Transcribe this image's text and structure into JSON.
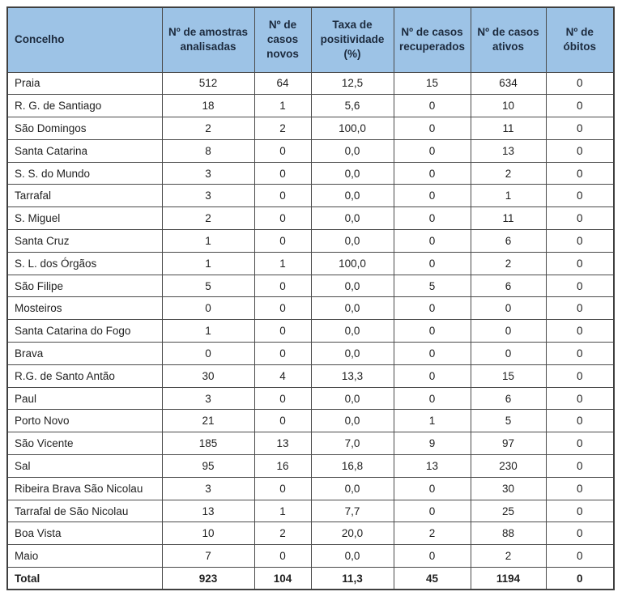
{
  "accent_colors": {
    "header_background": "#9dc3e6",
    "header_text": "#1c2a3d",
    "body_text": "#1f1f1f",
    "border": "#4a4a4a"
  },
  "table": {
    "columns": [
      "Concelho",
      "Nº de amostras analisadas",
      "Nº de casos novos",
      "Taxa de positividade (%)",
      "Nº de casos recuperados",
      "Nº de casos ativos",
      "Nº de óbitos"
    ],
    "rows": [
      {
        "concelho": "Praia",
        "values": [
          "512",
          "64",
          "12,5",
          "15",
          "634",
          "0"
        ]
      },
      {
        "concelho": "R. G. de Santiago",
        "values": [
          "18",
          "1",
          "5,6",
          "0",
          "10",
          "0"
        ]
      },
      {
        "concelho": "São Domingos",
        "values": [
          "2",
          "2",
          "100,0",
          "0",
          "11",
          "0"
        ]
      },
      {
        "concelho": "Santa Catarina",
        "values": [
          "8",
          "0",
          "0,0",
          "0",
          "13",
          "0"
        ]
      },
      {
        "concelho": "S. S. do Mundo",
        "values": [
          "3",
          "0",
          "0,0",
          "0",
          "2",
          "0"
        ]
      },
      {
        "concelho": "Tarrafal",
        "values": [
          "3",
          "0",
          "0,0",
          "0",
          "1",
          "0"
        ]
      },
      {
        "concelho": "S. Miguel",
        "values": [
          "2",
          "0",
          "0,0",
          "0",
          "11",
          "0"
        ]
      },
      {
        "concelho": "Santa Cruz",
        "values": [
          "1",
          "0",
          "0,0",
          "0",
          "6",
          "0"
        ]
      },
      {
        "concelho": "S. L. dos Órgãos",
        "values": [
          "1",
          "1",
          "100,0",
          "0",
          "2",
          "0"
        ]
      },
      {
        "concelho": "São Filipe",
        "values": [
          "5",
          "0",
          "0,0",
          "5",
          "6",
          "0"
        ]
      },
      {
        "concelho": "Mosteiros",
        "values": [
          "0",
          "0",
          "0,0",
          "0",
          "0",
          "0"
        ]
      },
      {
        "concelho": "Santa Catarina do Fogo",
        "values": [
          "1",
          "0",
          "0,0",
          "0",
          "0",
          "0"
        ]
      },
      {
        "concelho": "Brava",
        "values": [
          "0",
          "0",
          "0,0",
          "0",
          "0",
          "0"
        ]
      },
      {
        "concelho": "R.G. de Santo Antão",
        "values": [
          "30",
          "4",
          "13,3",
          "0",
          "15",
          "0"
        ]
      },
      {
        "concelho": "Paul",
        "values": [
          "3",
          "0",
          "0,0",
          "0",
          "6",
          "0"
        ]
      },
      {
        "concelho": "Porto Novo",
        "values": [
          "21",
          "0",
          "0,0",
          "1",
          "5",
          "0"
        ]
      },
      {
        "concelho": "São Vicente",
        "values": [
          "185",
          "13",
          "7,0",
          "9",
          "97",
          "0"
        ]
      },
      {
        "concelho": "Sal",
        "values": [
          "95",
          "16",
          "16,8",
          "13",
          "230",
          "0"
        ]
      },
      {
        "concelho": "Ribeira Brava São Nicolau",
        "values": [
          "3",
          "0",
          "0,0",
          "0",
          "30",
          "0"
        ]
      },
      {
        "concelho": "Tarrafal de São Nicolau",
        "values": [
          "13",
          "1",
          "7,7",
          "0",
          "25",
          "0"
        ]
      },
      {
        "concelho": "Boa Vista",
        "values": [
          "10",
          "2",
          "20,0",
          "2",
          "88",
          "0"
        ]
      },
      {
        "concelho": "Maio",
        "values": [
          "7",
          "0",
          "0,0",
          "0",
          "2",
          "0"
        ]
      }
    ],
    "total": {
      "concelho": "Total",
      "values": [
        "923",
        "104",
        "11,3",
        "45",
        "1194",
        "0"
      ]
    }
  }
}
